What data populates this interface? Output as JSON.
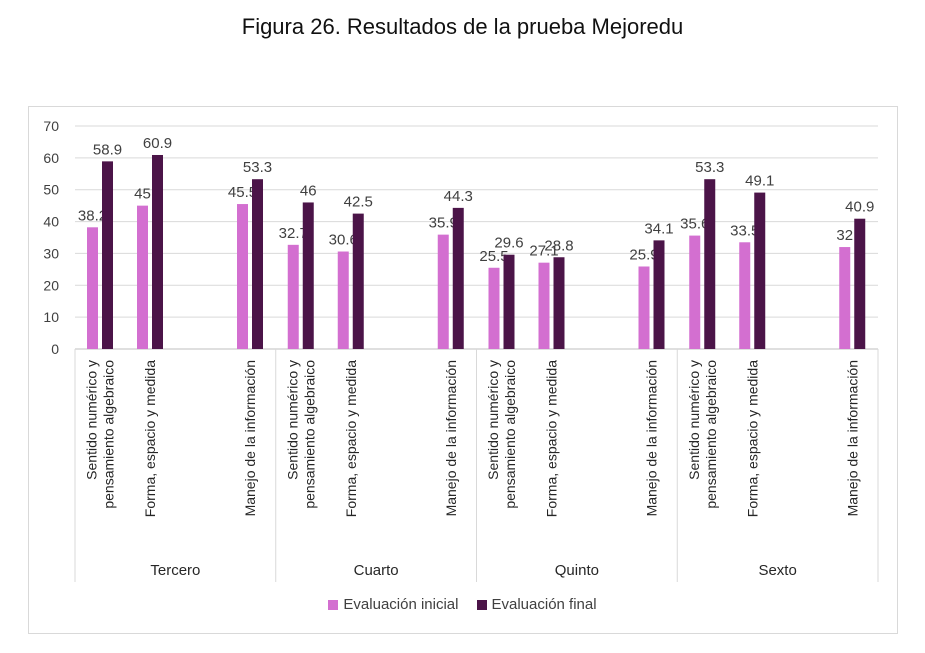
{
  "figure": {
    "title": "Figura 26. Resultados de la prueba Mejoredu"
  },
  "chart_data": {
    "type": "bar",
    "title": "Figura 26. Resultados de la prueba Mejoredu",
    "ylim": [
      0,
      70
    ],
    "yticks": [
      0,
      10,
      20,
      30,
      40,
      50,
      60,
      70
    ],
    "grid": true,
    "legend_position": "bottom",
    "groups": [
      {
        "name": "Tercero",
        "categories": [
          {
            "label": [
              "Sentido numérico y",
              "pensamiento algebraico"
            ],
            "inicial": 38.2,
            "final": 58.9,
            "inicial_text": "38.2",
            "final_text": "58.9"
          },
          {
            "label": [
              "Forma, espacio y medida"
            ],
            "inicial": 45,
            "final": 60.9,
            "inicial_text": "45",
            "final_text": "60.9"
          },
          {
            "label": [
              "Manejo de la información"
            ],
            "inicial": 45.5,
            "final": 53.3,
            "inicial_text": "45.5",
            "final_text": "53.3"
          }
        ]
      },
      {
        "name": "Cuarto",
        "categories": [
          {
            "label": [
              "Sentido numérico y",
              "pensamiento algebraico"
            ],
            "inicial": 32.7,
            "final": 46,
            "inicial_text": "32.7",
            "final_text": "46"
          },
          {
            "label": [
              "Forma, espacio y medida"
            ],
            "inicial": 30.6,
            "final": 42.5,
            "inicial_text": "30.6",
            "final_text": "42.5"
          },
          {
            "label": [
              "Manejo de la información"
            ],
            "inicial": 35.9,
            "final": 44.3,
            "inicial_text": "35.9",
            "final_text": "44.3"
          }
        ]
      },
      {
        "name": "Quinto",
        "categories": [
          {
            "label": [
              "Sentido numérico y",
              "pensamiento algebraico"
            ],
            "inicial": 25.5,
            "final": 29.6,
            "inicial_text": "25.5",
            "final_text": "29.6"
          },
          {
            "label": [
              "Forma, espacio y medida"
            ],
            "inicial": 27.1,
            "final": 28.8,
            "inicial_text": "27.1",
            "final_text": "28.8"
          },
          {
            "label": [
              "Manejo de la información"
            ],
            "inicial": 25.9,
            "final": 34.1,
            "inicial_text": "25.9",
            "final_text": "34.1"
          }
        ]
      },
      {
        "name": "Sexto",
        "categories": [
          {
            "label": [
              "Sentido numérico y",
              "pensamiento algebraico"
            ],
            "inicial": 35.6,
            "final": 53.3,
            "inicial_text": "35.6",
            "final_text": "53.3"
          },
          {
            "label": [
              "Forma, espacio y medida"
            ],
            "inicial": 33.5,
            "final": 49.1,
            "inicial_text": "33.5",
            "final_text": "49.1"
          },
          {
            "label": [
              "Manejo de la información"
            ],
            "inicial": 32,
            "final": 40.9,
            "inicial_text": "32",
            "final_text": "40.9"
          }
        ]
      }
    ],
    "series": [
      {
        "key": "inicial",
        "name": "Evaluación inicial",
        "color": "#d36fd0"
      },
      {
        "key": "final",
        "name": "Evaluación final",
        "color": "#4b1448"
      }
    ]
  }
}
